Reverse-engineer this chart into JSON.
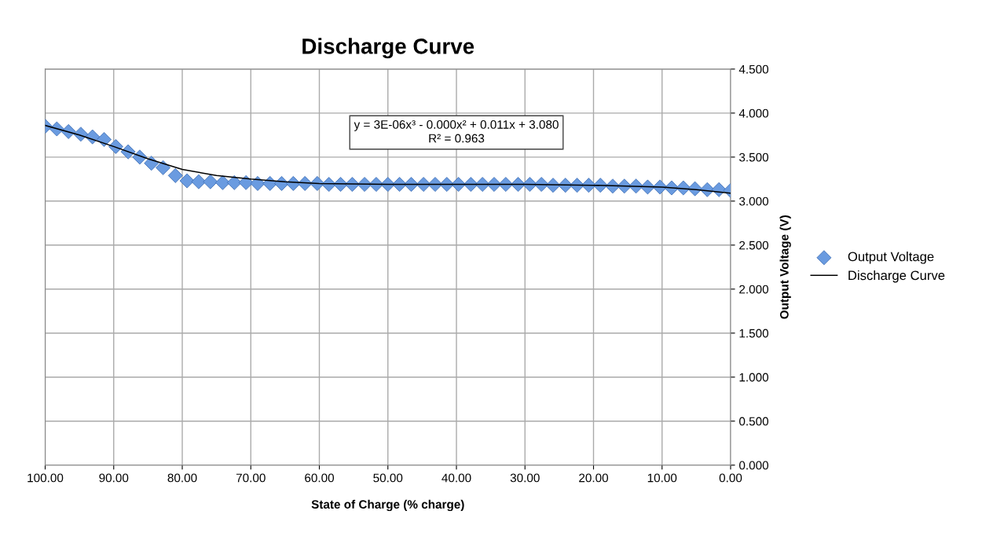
{
  "chart_data": {
    "type": "scatter",
    "title": "Discharge Curve",
    "xlabel": "State of Charge (% charge)",
    "ylabel": "Output Voltage (V)",
    "annotations": [
      "y = 3E-06x³ - 0.000x² + 0.011x + 3.080",
      "R² = 0.963"
    ],
    "xlim": [
      100,
      0
    ],
    "xticks": [
      {
        "value": 100,
        "label": "100.00"
      },
      {
        "value": 90,
        "label": "90.00"
      },
      {
        "value": 80,
        "label": "80.00"
      },
      {
        "value": 70,
        "label": "70.00"
      },
      {
        "value": 60,
        "label": "60.00"
      },
      {
        "value": 50,
        "label": "50.00"
      },
      {
        "value": 40,
        "label": "40.00"
      },
      {
        "value": 30,
        "label": "30.00"
      },
      {
        "value": 20,
        "label": "20.00"
      },
      {
        "value": 10,
        "label": "10.00"
      },
      {
        "value": 0,
        "label": "0.00"
      }
    ],
    "ylim": [
      0,
      4.5
    ],
    "yticks": [
      {
        "value": 0,
        "label": "0.000"
      },
      {
        "value": 0.5,
        "label": "0.500"
      },
      {
        "value": 1,
        "label": "1.000"
      },
      {
        "value": 1.5,
        "label": "1.500"
      },
      {
        "value": 2,
        "label": "2.000"
      },
      {
        "value": 2.5,
        "label": "2.500"
      },
      {
        "value": 3,
        "label": "3.000"
      },
      {
        "value": 3.5,
        "label": "3.500"
      },
      {
        "value": 4,
        "label": "4.000"
      },
      {
        "value": 4.5,
        "label": "4.500"
      }
    ],
    "grid": true,
    "legend": "right",
    "series": [
      {
        "name": "Output Voltage",
        "color": "#6a9be0",
        "marker": "diamond",
        "x": [
          100,
          98.3,
          96.6,
          94.8,
          93.1,
          91.4,
          89.7,
          87.9,
          86.2,
          84.5,
          82.8,
          81.0,
          79.3,
          77.6,
          75.9,
          74.1,
          72.4,
          70.7,
          69.0,
          67.2,
          65.5,
          63.8,
          62.1,
          60.3,
          58.6,
          56.9,
          55.2,
          53.4,
          51.7,
          50.0,
          48.3,
          46.6,
          44.8,
          43.1,
          41.4,
          39.7,
          37.9,
          36.2,
          34.5,
          32.8,
          31.0,
          29.3,
          27.6,
          25.9,
          24.1,
          22.4,
          20.7,
          19.0,
          17.2,
          15.5,
          13.8,
          12.1,
          10.3,
          8.6,
          6.9,
          5.2,
          3.4,
          1.7,
          0.0
        ],
        "values": [
          3.85,
          3.82,
          3.79,
          3.76,
          3.73,
          3.7,
          3.62,
          3.56,
          3.5,
          3.43,
          3.38,
          3.29,
          3.23,
          3.22,
          3.22,
          3.21,
          3.21,
          3.21,
          3.2,
          3.2,
          3.2,
          3.2,
          3.2,
          3.2,
          3.19,
          3.19,
          3.19,
          3.19,
          3.19,
          3.19,
          3.19,
          3.19,
          3.19,
          3.19,
          3.19,
          3.19,
          3.19,
          3.19,
          3.19,
          3.19,
          3.19,
          3.19,
          3.19,
          3.18,
          3.18,
          3.18,
          3.18,
          3.18,
          3.17,
          3.17,
          3.17,
          3.16,
          3.16,
          3.15,
          3.15,
          3.14,
          3.13,
          3.13,
          3.12
        ]
      },
      {
        "name": "Discharge Curve",
        "type": "line",
        "color": "#000000",
        "marker": "none",
        "line_style": "solid",
        "x": [
          100,
          95,
          90,
          85,
          80,
          75,
          70,
          65,
          60,
          50,
          40,
          30,
          20,
          10,
          5,
          0
        ],
        "values": [
          3.86,
          3.75,
          3.62,
          3.48,
          3.36,
          3.29,
          3.25,
          3.22,
          3.2,
          3.19,
          3.19,
          3.19,
          3.18,
          3.16,
          3.13,
          3.09
        ]
      }
    ]
  }
}
